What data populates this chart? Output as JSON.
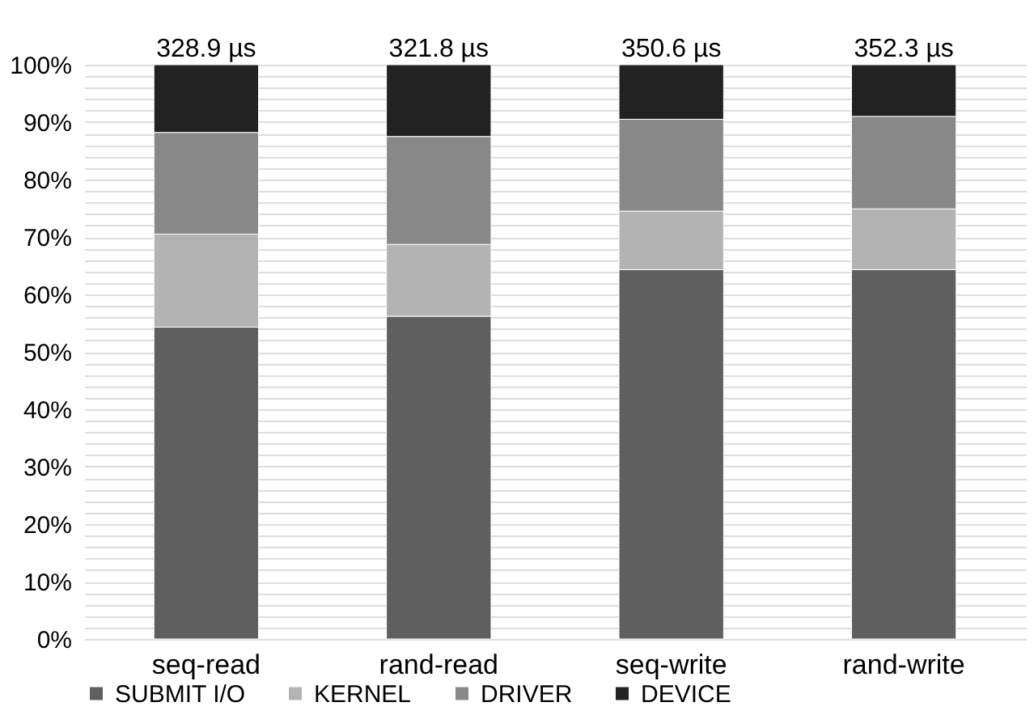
{
  "chart_data": {
    "type": "bar",
    "stacked": true,
    "categories": [
      "seq-read",
      "rand-read",
      "seq-write",
      "rand-write"
    ],
    "series": [
      {
        "name": "SUBMIT I/O",
        "color": "#5f5f5f",
        "values": [
          54.3,
          56.2,
          64.3,
          64.3
        ]
      },
      {
        "name": "KERNEL",
        "color": "#b3b3b3",
        "values": [
          16.2,
          12.5,
          10.2,
          10.6
        ]
      },
      {
        "name": "DRIVER",
        "color": "#888888",
        "values": [
          17.7,
          18.8,
          16.0,
          16.1
        ]
      },
      {
        "name": "DEVICE",
        "color": "#222222",
        "values": [
          11.8,
          12.5,
          9.5,
          9.0
        ]
      }
    ],
    "annotations": [
      {
        "text": "328.9 µs",
        "x": "seq-read",
        "y": 100
      },
      {
        "text": "321.8 µs",
        "x": "rand-read",
        "y": 100
      },
      {
        "text": "350.6 µs",
        "x": "seq-write",
        "y": 100
      },
      {
        "text": "352.3 µs",
        "x": "rand-write",
        "y": 100
      }
    ],
    "ylim": [
      0,
      100
    ],
    "yticks": [
      {
        "value": 0,
        "label": "0%"
      },
      {
        "value": 2,
        "label": null
      },
      {
        "value": 4,
        "label": null
      },
      {
        "value": 6,
        "label": null
      },
      {
        "value": 8,
        "label": null
      },
      {
        "value": 10,
        "label": "10%"
      },
      {
        "value": 12,
        "label": null
      },
      {
        "value": 14,
        "label": null
      },
      {
        "value": 16,
        "label": null
      },
      {
        "value": 18,
        "label": null
      },
      {
        "value": 20,
        "label": "20%"
      },
      {
        "value": 22,
        "label": null
      },
      {
        "value": 24,
        "label": null
      },
      {
        "value": 26,
        "label": null
      },
      {
        "value": 28,
        "label": null
      },
      {
        "value": 30,
        "label": "30%"
      },
      {
        "value": 32,
        "label": null
      },
      {
        "value": 34,
        "label": null
      },
      {
        "value": 36,
        "label": null
      },
      {
        "value": 38,
        "label": null
      },
      {
        "value": 40,
        "label": "40%"
      },
      {
        "value": 42,
        "label": null
      },
      {
        "value": 44,
        "label": null
      },
      {
        "value": 46,
        "label": null
      },
      {
        "value": 48,
        "label": null
      },
      {
        "value": 50,
        "label": "50%"
      },
      {
        "value": 52,
        "label": null
      },
      {
        "value": 54,
        "label": null
      },
      {
        "value": 56,
        "label": null
      },
      {
        "value": 58,
        "label": null
      },
      {
        "value": 60,
        "label": "60%"
      },
      {
        "value": 62,
        "label": null
      },
      {
        "value": 64,
        "label": null
      },
      {
        "value": 66,
        "label": null
      },
      {
        "value": 68,
        "label": null
      },
      {
        "value": 70,
        "label": "70%"
      },
      {
        "value": 72,
        "label": null
      },
      {
        "value": 74,
        "label": null
      },
      {
        "value": 76,
        "label": null
      },
      {
        "value": 78,
        "label": null
      },
      {
        "value": 80,
        "label": "80%"
      },
      {
        "value": 82,
        "label": null
      },
      {
        "value": 84,
        "label": null
      },
      {
        "value": 86,
        "label": null
      },
      {
        "value": 88,
        "label": null
      },
      {
        "value": 90,
        "label": "90%"
      },
      {
        "value": 92,
        "label": null
      },
      {
        "value": 94,
        "label": null
      },
      {
        "value": 96,
        "label": null
      },
      {
        "value": 98,
        "label": null
      },
      {
        "value": 100,
        "label": "100%"
      }
    ],
    "grid": "y",
    "legend": "bottom"
  }
}
